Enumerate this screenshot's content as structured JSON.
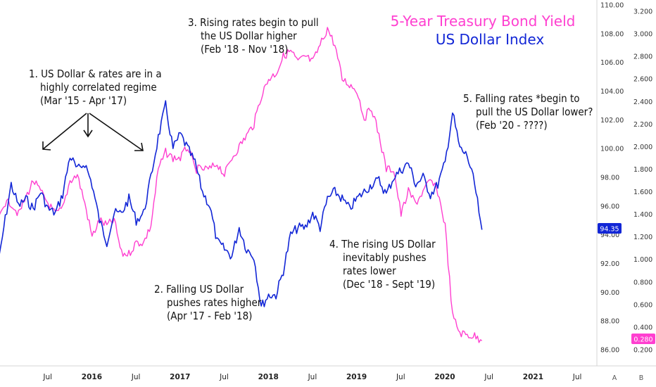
{
  "chart_data": {
    "type": "line",
    "legend": {
      "title_pink": "5-Year Treasury Bond Yield",
      "title_blue": "US Dollar Index",
      "color_pink": "#ff3fd0",
      "color_blue": "#1226d6"
    },
    "x_axis": {
      "ticks": [
        "Jul",
        "2016",
        "Jul",
        "2017",
        "Jul",
        "2018",
        "Jul",
        "2019",
        "Jul",
        "2020",
        "Jul",
        "2021",
        "Jul"
      ],
      "year_ticks": [
        "2016",
        "2017",
        "2018",
        "2019",
        "2020",
        "2021"
      ],
      "range": [
        "2015-01",
        "2021-12"
      ]
    },
    "y_axis_left_scale": {
      "label": "US Dollar Index",
      "ticks": [
        "110.00",
        "108.00",
        "106.00",
        "104.00",
        "102.00",
        "100.00",
        "98.00",
        "96.00",
        "94.00",
        "92.00",
        "90.00",
        "88.00",
        "86.00"
      ],
      "range": [
        85,
        110.5
      ]
    },
    "y_axis_right_scale": {
      "label": "5-Year Treasury Bond Yield",
      "ticks": [
        "3.200",
        "3.000",
        "2.800",
        "2.600",
        "2.400",
        "2.200",
        "2.000",
        "1.800",
        "1.600",
        "1.400",
        "1.200",
        "1.000",
        "0.800",
        "0.600",
        "0.400",
        "0.200"
      ],
      "range": [
        0.1,
        3.25
      ]
    },
    "last_values": {
      "dollar": "94.35",
      "yield": "0.280"
    },
    "series": [
      {
        "name": "US Dollar Index",
        "color": "#1226d6",
        "points": [
          [
            "2015-01",
            91.0
          ],
          [
            "2015-02",
            94.5
          ],
          [
            "2015-03",
            97.5
          ],
          [
            "2015-04",
            96.0
          ],
          [
            "2015-05",
            96.5
          ],
          [
            "2015-06",
            95.8
          ],
          [
            "2015-07",
            97.0
          ],
          [
            "2015-08",
            95.8
          ],
          [
            "2015-09",
            95.5
          ],
          [
            "2015-10",
            96.8
          ],
          [
            "2015-11",
            99.5
          ],
          [
            "2015-12",
            98.5
          ],
          [
            "2016-01",
            99.0
          ],
          [
            "2016-02",
            97.5
          ],
          [
            "2016-03",
            95.0
          ],
          [
            "2016-04",
            93.5
          ],
          [
            "2016-05",
            95.5
          ],
          [
            "2016-06",
            95.5
          ],
          [
            "2016-07",
            96.5
          ],
          [
            "2016-08",
            95.0
          ],
          [
            "2016-09",
            95.5
          ],
          [
            "2016-10",
            98.0
          ],
          [
            "2016-11",
            100.8
          ],
          [
            "2016-12",
            103.0
          ],
          [
            "2017-01",
            100.0
          ],
          [
            "2017-02",
            101.0
          ],
          [
            "2017-03",
            100.0
          ],
          [
            "2017-04",
            99.0
          ],
          [
            "2017-05",
            97.0
          ],
          [
            "2017-06",
            96.0
          ],
          [
            "2017-07",
            93.5
          ],
          [
            "2017-08",
            93.0
          ],
          [
            "2017-09",
            92.5
          ],
          [
            "2017-10",
            94.5
          ],
          [
            "2017-11",
            93.0
          ],
          [
            "2017-12",
            92.5
          ],
          [
            "2018-01",
            89.0
          ],
          [
            "2018-02",
            89.8
          ],
          [
            "2018-03",
            89.8
          ],
          [
            "2018-04",
            91.5
          ],
          [
            "2018-05",
            94.0
          ],
          [
            "2018-06",
            94.5
          ],
          [
            "2018-07",
            94.5
          ],
          [
            "2018-08",
            95.5
          ],
          [
            "2018-09",
            94.5
          ],
          [
            "2018-10",
            96.5
          ],
          [
            "2018-11",
            97.0
          ],
          [
            "2018-12",
            96.5
          ],
          [
            "2019-01",
            95.8
          ],
          [
            "2019-02",
            96.5
          ],
          [
            "2019-03",
            97.0
          ],
          [
            "2019-04",
            97.5
          ],
          [
            "2019-05",
            97.8
          ],
          [
            "2019-06",
            96.8
          ],
          [
            "2019-07",
            98.0
          ],
          [
            "2019-08",
            98.5
          ],
          [
            "2019-09",
            99.0
          ],
          [
            "2019-10",
            97.5
          ],
          [
            "2019-11",
            98.0
          ],
          [
            "2019-12",
            96.8
          ],
          [
            "2020-01",
            97.5
          ],
          [
            "2020-02",
            99.0
          ],
          [
            "2020-03",
            102.5
          ],
          [
            "2020-04",
            100.0
          ],
          [
            "2020-05",
            99.5
          ],
          [
            "2020-06",
            97.5
          ],
          [
            "2020-07",
            94.35
          ]
        ]
      },
      {
        "name": "5-Year Treasury Bond Yield",
        "color": "#ff3fd0",
        "points": [
          [
            "2015-01",
            1.3
          ],
          [
            "2015-02",
            1.5
          ],
          [
            "2015-03",
            1.5
          ],
          [
            "2015-04",
            1.4
          ],
          [
            "2015-05",
            1.55
          ],
          [
            "2015-06",
            1.7
          ],
          [
            "2015-07",
            1.6
          ],
          [
            "2015-08",
            1.5
          ],
          [
            "2015-09",
            1.4
          ],
          [
            "2015-10",
            1.45
          ],
          [
            "2015-11",
            1.7
          ],
          [
            "2015-12",
            1.75
          ],
          [
            "2016-01",
            1.5
          ],
          [
            "2016-02",
            1.2
          ],
          [
            "2016-03",
            1.35
          ],
          [
            "2016-04",
            1.3
          ],
          [
            "2016-05",
            1.35
          ],
          [
            "2016-06",
            1.05
          ],
          [
            "2016-07",
            1.05
          ],
          [
            "2016-08",
            1.15
          ],
          [
            "2016-09",
            1.15
          ],
          [
            "2016-10",
            1.3
          ],
          [
            "2016-11",
            1.8
          ],
          [
            "2016-12",
            1.95
          ],
          [
            "2017-01",
            1.9
          ],
          [
            "2017-02",
            1.9
          ],
          [
            "2017-03",
            2.0
          ],
          [
            "2017-04",
            1.8
          ],
          [
            "2017-05",
            1.8
          ],
          [
            "2017-06",
            1.8
          ],
          [
            "2017-07",
            1.85
          ],
          [
            "2017-08",
            1.75
          ],
          [
            "2017-09",
            1.9
          ],
          [
            "2017-10",
            2.0
          ],
          [
            "2017-11",
            2.1
          ],
          [
            "2017-12",
            2.2
          ],
          [
            "2018-01",
            2.45
          ],
          [
            "2018-02",
            2.6
          ],
          [
            "2018-03",
            2.65
          ],
          [
            "2018-04",
            2.8
          ],
          [
            "2018-05",
            2.85
          ],
          [
            "2018-06",
            2.75
          ],
          [
            "2018-07",
            2.8
          ],
          [
            "2018-08",
            2.75
          ],
          [
            "2018-09",
            2.9
          ],
          [
            "2018-10",
            3.05
          ],
          [
            "2018-11",
            2.9
          ],
          [
            "2018-12",
            2.6
          ],
          [
            "2019-01",
            2.55
          ],
          [
            "2019-02",
            2.5
          ],
          [
            "2019-03",
            2.25
          ],
          [
            "2019-04",
            2.35
          ],
          [
            "2019-05",
            2.1
          ],
          [
            "2019-06",
            1.8
          ],
          [
            "2019-07",
            1.8
          ],
          [
            "2019-08",
            1.4
          ],
          [
            "2019-09",
            1.6
          ],
          [
            "2019-10",
            1.5
          ],
          [
            "2019-11",
            1.6
          ],
          [
            "2019-12",
            1.7
          ],
          [
            "2020-01",
            1.6
          ],
          [
            "2020-02",
            1.3
          ],
          [
            "2020-03",
            0.5
          ],
          [
            "2020-04",
            0.35
          ],
          [
            "2020-05",
            0.33
          ],
          [
            "2020-06",
            0.32
          ],
          [
            "2020-07",
            0.28
          ]
        ]
      }
    ],
    "annotations": [
      {
        "id": "a1",
        "lines": [
          "1. US Dollar & rates are in a",
          "highly correlated regime",
          "(Mar '15 - Apr '17)"
        ]
      },
      {
        "id": "a2",
        "lines": [
          "2. Falling US Dollar",
          "pushes rates higher",
          "(Apr '17 - Feb '18)"
        ]
      },
      {
        "id": "a3",
        "lines": [
          "3. Rising rates begin to pull",
          "the US Dollar higher",
          "(Feb '18 - Nov '18)"
        ]
      },
      {
        "id": "a4",
        "lines": [
          "4. The rising US Dollar",
          "inevitably pushes",
          "rates lower",
          "(Dec '18 - Sept '19)"
        ]
      },
      {
        "id": "a5",
        "lines": [
          "5. Falling rates *begin to",
          "pull the US Dollar lower?",
          "(Feb '20 - ????)"
        ]
      }
    ]
  },
  "corner_buttons": {
    "auto": "A",
    "log": "B"
  }
}
